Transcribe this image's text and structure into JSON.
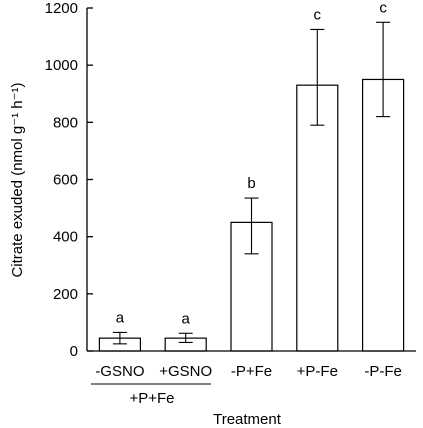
{
  "chart_data": {
    "type": "bar",
    "xlabel": "Treatment",
    "ylabel": "Citrate exuded (nmol g⁻¹ h⁻¹)",
    "ylim": [
      0,
      1200
    ],
    "yticks": [
      0,
      200,
      400,
      600,
      800,
      1000,
      1200
    ],
    "grid": false,
    "categories": [
      "-GSNO",
      "+GSNO",
      "-P+Fe",
      "+P-Fe",
      "-P-Fe"
    ],
    "values": [
      45,
      45,
      450,
      930,
      950
    ],
    "error_low": [
      25,
      30,
      340,
      790,
      820
    ],
    "error_high": [
      65,
      62,
      535,
      1125,
      1150
    ],
    "significance": [
      "a",
      "a",
      "b",
      "c",
      "c"
    ],
    "group_label": "+P+Fe",
    "group_members": [
      "-GSNO",
      "+GSNO"
    ]
  }
}
